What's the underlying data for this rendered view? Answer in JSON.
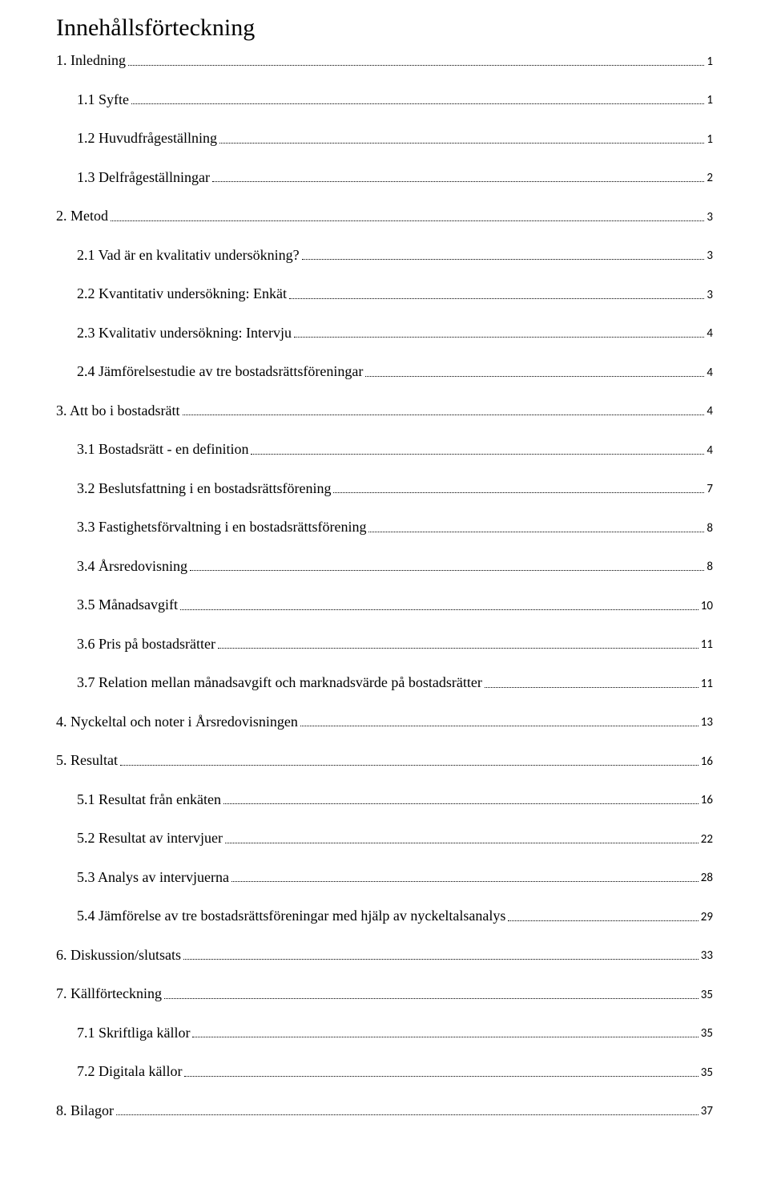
{
  "title": "Innehållsförteckning",
  "page_font_color": "#000000",
  "background_color": "#ffffff",
  "entries": [
    {
      "level": 0,
      "text": "1. Inledning",
      "page": "1"
    },
    {
      "level": 1,
      "text": "1.1 Syfte",
      "page": "1"
    },
    {
      "level": 1,
      "text": "1.2 Huvudfrågeställning",
      "page": "1"
    },
    {
      "level": 1,
      "text": "1.3 Delfrågeställningar",
      "page": "2"
    },
    {
      "level": 0,
      "text": "2. Metod",
      "page": "3"
    },
    {
      "level": 1,
      "text": "2.1 Vad är en kvalitativ undersökning?",
      "page": "3"
    },
    {
      "level": 1,
      "text": "2.2 Kvantitativ undersökning: Enkät",
      "page": "3"
    },
    {
      "level": 1,
      "text": "2.3 Kvalitativ undersökning: Intervju",
      "page": "4"
    },
    {
      "level": 1,
      "text": "2.4 Jämförelsestudie av tre bostadsrättsföreningar",
      "page": "4"
    },
    {
      "level": 0,
      "text": "3. Att bo i bostadsrätt",
      "page": "4"
    },
    {
      "level": 1,
      "text": "3.1 Bostadsrätt - en definition",
      "page": "4"
    },
    {
      "level": 1,
      "text": "3.2 Beslutsfattning i en bostadsrättsförening",
      "page": "7"
    },
    {
      "level": 1,
      "text": "3.3 Fastighetsförvaltning i en bostadsrättsförening",
      "page": "8"
    },
    {
      "level": 1,
      "text": "3.4 Årsredovisning",
      "page": "8"
    },
    {
      "level": 1,
      "text": "3.5 Månadsavgift",
      "page": "10"
    },
    {
      "level": 1,
      "text": "3.6 Pris på bostadsrätter",
      "page": "11"
    },
    {
      "level": 1,
      "text": "3.7 Relation mellan månadsavgift och marknadsvärde på bostadsrätter",
      "page": "11"
    },
    {
      "level": 0,
      "text": "4. Nyckeltal och noter i Årsredovisningen",
      "page": "13"
    },
    {
      "level": 0,
      "text": "5. Resultat",
      "page": "16"
    },
    {
      "level": 1,
      "text": "5.1 Resultat från enkäten",
      "page": "16"
    },
    {
      "level": 1,
      "text": "5.2 Resultat av intervjuer",
      "page": "22"
    },
    {
      "level": 1,
      "text": "5.3 Analys av intervjuerna",
      "page": "28"
    },
    {
      "level": 1,
      "text": "5.4 Jämförelse av tre bostadsrättsföreningar med hjälp av nyckeltalsanalys",
      "page": "29"
    },
    {
      "level": 0,
      "text": "6. Diskussion/slutsats",
      "page": "33"
    },
    {
      "level": 0,
      "text": "7. Källförteckning",
      "page": "35"
    },
    {
      "level": 1,
      "text": "7.1 Skriftliga källor",
      "page": "35"
    },
    {
      "level": 1,
      "text": "7.2 Digitala källor",
      "page": "35"
    },
    {
      "level": 0,
      "text": "8. Bilagor",
      "page": "37"
    }
  ]
}
